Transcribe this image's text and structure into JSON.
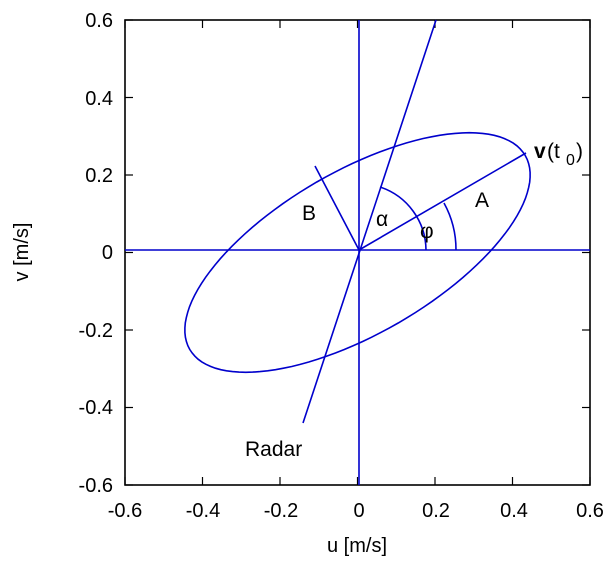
{
  "axes": {
    "xlabel": "u [m/s]",
    "ylabel": "v [m/s]",
    "xlim": [
      -0.6,
      0.6
    ],
    "ylim": [
      -0.6,
      0.6
    ],
    "xticks": [
      "-0.6",
      "-0.4",
      "-0.2",
      "0",
      "0.2",
      "0.4",
      "0.6"
    ],
    "yticks": [
      "0.6",
      "0.4",
      "0.2",
      "0",
      "-0.2",
      "-0.4",
      "-0.6"
    ]
  },
  "labels": {
    "A": "A",
    "B": "B",
    "alpha": "α",
    "phi": "φ",
    "radar": "Radar",
    "velocity_bold": "v",
    "velocity_paren_open": "(t",
    "velocity_sub": "0",
    "velocity_paren_close": ")"
  },
  "colors": {
    "line": "#0000cc",
    "axis": "#000000"
  },
  "chart_data": {
    "type": "diagram",
    "ellipse": {
      "center": [
        0,
        0
      ],
      "semi_major_A": 0.5,
      "semi_minor_B": 0.21,
      "orientation_phi_deg": 30
    },
    "radar_line": {
      "from": [
        -0.15,
        -0.45
      ],
      "to": [
        0.2,
        0.6
      ]
    },
    "major_axis_endpoint": [
      0.43,
      0.25
    ],
    "minor_axis_endpoint": [
      -0.11,
      0.22
    ],
    "alpha_arc_radius": 0.18,
    "phi_arc_radius": 0.25
  }
}
